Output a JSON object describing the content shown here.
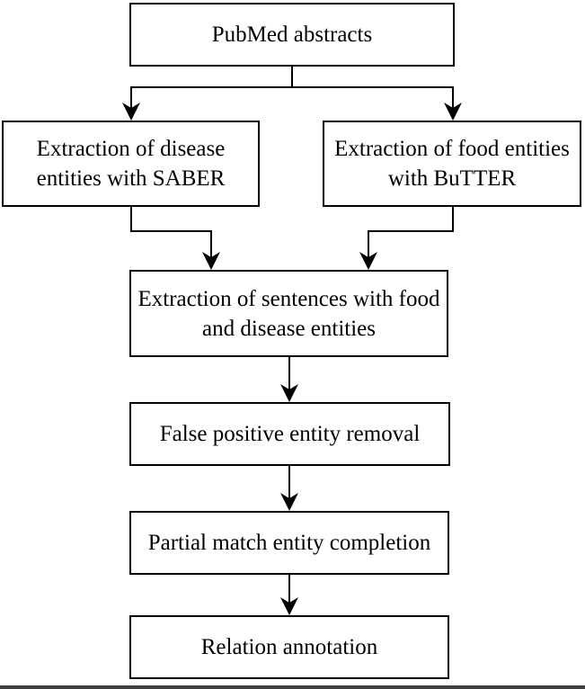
{
  "diagram": {
    "nodes": {
      "pubmed": "PubMed abstracts",
      "disease_extraction": "Extraction of disease entities with SABER",
      "food_extraction": "Extraction of food entities with BuTTER",
      "sentence_extraction": "Extraction of sentences with food and disease entities",
      "false_positive_removal": "False positive entity removal",
      "partial_match_completion": "Partial match entity completion",
      "relation_annotation": "Relation annotation"
    },
    "edges": [
      {
        "from": "pubmed",
        "to": "disease_extraction"
      },
      {
        "from": "pubmed",
        "to": "food_extraction"
      },
      {
        "from": "disease_extraction",
        "to": "sentence_extraction"
      },
      {
        "from": "food_extraction",
        "to": "sentence_extraction"
      },
      {
        "from": "sentence_extraction",
        "to": "false_positive_removal"
      },
      {
        "from": "false_positive_removal",
        "to": "partial_match_completion"
      },
      {
        "from": "partial_match_completion",
        "to": "relation_annotation"
      }
    ],
    "colors": {
      "stroke": "#000000",
      "background": "#ffffff"
    }
  }
}
